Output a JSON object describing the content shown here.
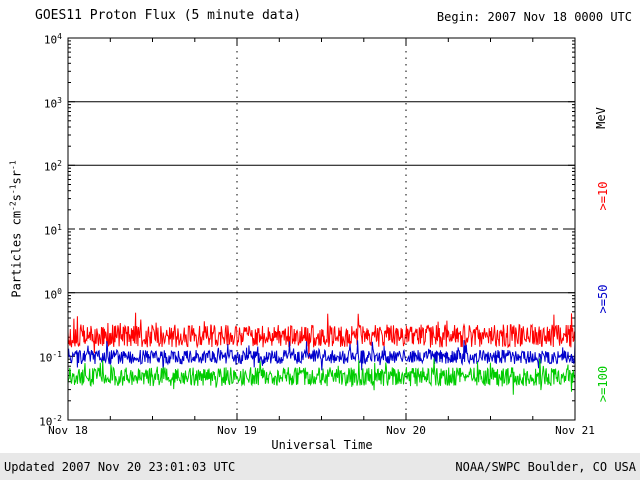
{
  "header": {
    "title": "GOES11 Proton Flux (5 minute data)",
    "begin_label": "Begin: 2007 Nov 18 0000 UTC"
  },
  "footer": {
    "updated": "Updated 2007 Nov 20 23:01:03 UTC",
    "source": "NOAA/SWPC Boulder, CO USA"
  },
  "axis": {
    "x_label": "Universal Time",
    "right_unit_label": "MeV",
    "y_label_segments": [
      {
        "t": "Particles cm"
      },
      {
        "sup": "-2"
      },
      {
        "t": "s"
      },
      {
        "sup": "-1"
      },
      {
        "t": "sr"
      },
      {
        "sup": "-1"
      }
    ]
  },
  "chart_data": {
    "type": "line",
    "title": "GOES11 Proton Flux (5 minute data)",
    "xlabel": "Universal Time",
    "ylabel": "Particles cm^-2 s^-1 sr^-1",
    "x_ticks": [
      "Nov 18",
      "Nov 19",
      "Nov 20",
      "Nov 21"
    ],
    "x_range_days": 3,
    "points_per_day": 288,
    "y_scale": "log10",
    "y_log_min": -2,
    "y_log_max": 4,
    "y_tick_base": "10",
    "y_tick_exponents": [
      4,
      3,
      2,
      1,
      0,
      -1,
      -2
    ],
    "grid": {
      "h_solid_logs": [
        3,
        2,
        0
      ],
      "h_dashed_logs": [
        1
      ],
      "v_dotted_days": [
        1,
        2
      ]
    },
    "series": [
      {
        "name": "Proton flux >=10 MeV",
        "label": ">=10",
        "color": "#ff0000",
        "approx_mean_flux": 0.22,
        "log_mean": -0.68,
        "log_jitter": 0.18,
        "spike_prob": 0.08,
        "spike_mag": 0.25
      },
      {
        "name": "Proton flux >=50 MeV",
        "label": ">=50",
        "color": "#0000cc",
        "approx_mean_flux": 0.1,
        "log_mean": -1.01,
        "log_jitter": 0.11,
        "spike_prob": 0.07,
        "spike_mag": 0.18
      },
      {
        "name": "Proton flux >=100 MeV",
        "label": ">=100",
        "color": "#00cc00",
        "approx_mean_flux": 0.05,
        "log_mean": -1.32,
        "log_jitter": 0.15,
        "spike_prob": 0.08,
        "spike_mag": 0.2
      }
    ],
    "legend_position": "right",
    "seed": 20071118
  }
}
